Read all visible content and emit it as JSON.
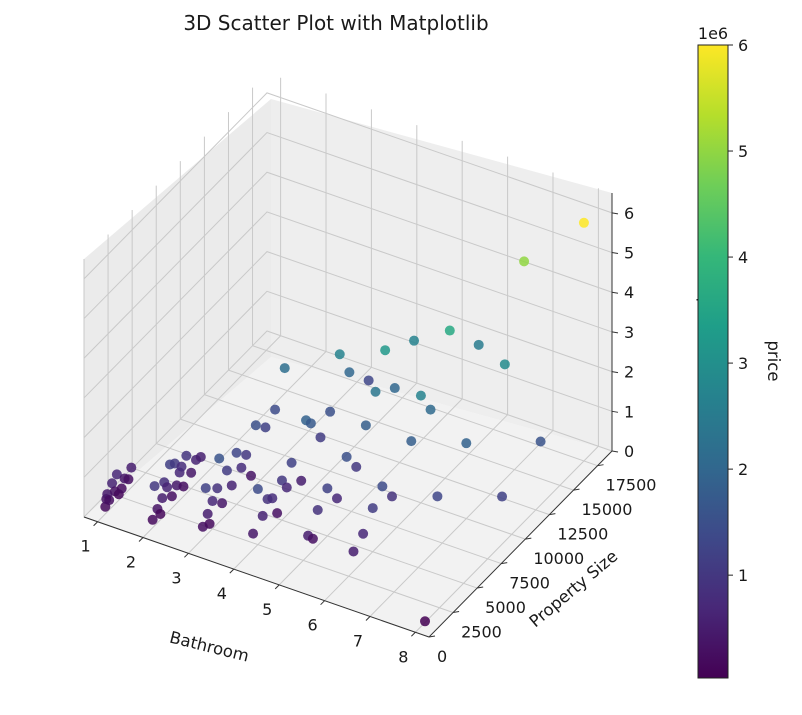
{
  "chart_data": {
    "type": "scatter",
    "title": "3D Scatter Plot with Matplotlib",
    "xlabel": "Bathroom",
    "ylabel": "Property Size",
    "zlabel": "price",
    "x_ticks": [
      "1",
      "2",
      "3",
      "4",
      "5",
      "6",
      "7",
      "8"
    ],
    "y_ticks": [
      "0",
      "2500",
      "5000",
      "7500",
      "10000",
      "12500",
      "15000",
      "17500"
    ],
    "z_ticks": [
      "0",
      "1",
      "2",
      "3",
      "4",
      "5",
      "6"
    ],
    "xlim": [
      0.7,
      8.3
    ],
    "ylim": [
      0,
      19000
    ],
    "zlim": [
      0,
      6500000
    ],
    "grid": true,
    "colormap": "viridis",
    "colorbar": {
      "label": "price",
      "multiplier": "1e6",
      "ticks": [
        "1",
        "2",
        "3",
        "4",
        "5",
        "6"
      ],
      "range": [
        30000,
        6000000
      ],
      "colors": [
        "#440154",
        "#482878",
        "#3e4989",
        "#31688e",
        "#26828e",
        "#1f9e89",
        "#35b779",
        "#6ece58",
        "#b5de2b",
        "#fde725"
      ]
    },
    "points": [
      {
        "x": 1,
        "y": 800,
        "z": 180000
      },
      {
        "x": 1,
        "y": 1200,
        "z": 250000
      },
      {
        "x": 1,
        "y": 1800,
        "z": 320000
      },
      {
        "x": 1,
        "y": 2200,
        "z": 150000
      },
      {
        "x": 1,
        "y": 2800,
        "z": 400000
      },
      {
        "x": 1,
        "y": 1500,
        "z": 600000
      },
      {
        "x": 1,
        "y": 900,
        "z": 350000
      },
      {
        "x": 1,
        "y": 2500,
        "z": 220000
      },
      {
        "x": 1,
        "y": 3200,
        "z": 280000
      },
      {
        "x": 1,
        "y": 1000,
        "z": 450000
      },
      {
        "x": 1,
        "y": 2000,
        "z": 700000
      },
      {
        "x": 1,
        "y": 3500,
        "z": 500000
      },
      {
        "x": 2,
        "y": 1000,
        "z": 200000
      },
      {
        "x": 2,
        "y": 1500,
        "z": 350000
      },
      {
        "x": 2,
        "y": 2000,
        "z": 500000
      },
      {
        "x": 2,
        "y": 2500,
        "z": 650000
      },
      {
        "x": 2,
        "y": 3000,
        "z": 300000
      },
      {
        "x": 2,
        "y": 3500,
        "z": 450000
      },
      {
        "x": 2,
        "y": 4000,
        "z": 800000
      },
      {
        "x": 2,
        "y": 4500,
        "z": 950000
      },
      {
        "x": 2,
        "y": 1200,
        "z": 1000000
      },
      {
        "x": 2,
        "y": 2800,
        "z": 1150000
      },
      {
        "x": 2,
        "y": 3800,
        "z": 700000
      },
      {
        "x": 2,
        "y": 5000,
        "z": 400000
      },
      {
        "x": 2,
        "y": 5500,
        "z": 600000
      },
      {
        "x": 2,
        "y": 1800,
        "z": 150000
      },
      {
        "x": 2,
        "y": 2200,
        "z": 850000
      },
      {
        "x": 2,
        "y": 3300,
        "z": 1050000
      },
      {
        "x": 2,
        "y": 4200,
        "z": 250000
      },
      {
        "x": 2,
        "y": 6000,
        "z": 550000
      },
      {
        "x": 3,
        "y": 1500,
        "z": 300000
      },
      {
        "x": 3,
        "y": 2000,
        "z": 500000
      },
      {
        "x": 3,
        "y": 2500,
        "z": 700000
      },
      {
        "x": 3,
        "y": 3000,
        "z": 900000
      },
      {
        "x": 3,
        "y": 3500,
        "z": 400000
      },
      {
        "x": 3,
        "y": 4000,
        "z": 1100000
      },
      {
        "x": 3,
        "y": 4500,
        "z": 600000
      },
      {
        "x": 3,
        "y": 5000,
        "z": 1300000
      },
      {
        "x": 3,
        "y": 5500,
        "z": 800000
      },
      {
        "x": 3,
        "y": 6000,
        "z": 1000000
      },
      {
        "x": 3,
        "y": 7000,
        "z": 1500000
      },
      {
        "x": 3,
        "y": 8000,
        "z": 1200000
      },
      {
        "x": 3,
        "y": 2200,
        "z": 200000
      },
      {
        "x": 3,
        "y": 3200,
        "z": 1600000
      },
      {
        "x": 3,
        "y": 6500,
        "z": 350000
      },
      {
        "x": 3,
        "y": 9000,
        "z": 1400000
      },
      {
        "x": 3,
        "y": 10000,
        "z": 2200000
      },
      {
        "x": 3,
        "y": 1800,
        "z": 1200000
      },
      {
        "x": 4,
        "y": 2000,
        "z": 400000
      },
      {
        "x": 4,
        "y": 3000,
        "z": 600000
      },
      {
        "x": 4,
        "y": 4000,
        "z": 800000
      },
      {
        "x": 4,
        "y": 5000,
        "z": 1000000
      },
      {
        "x": 4,
        "y": 6000,
        "z": 1200000
      },
      {
        "x": 4,
        "y": 7000,
        "z": 500000
      },
      {
        "x": 4,
        "y": 2500,
        "z": 1400000
      },
      {
        "x": 4,
        "y": 3500,
        "z": 900000
      },
      {
        "x": 4,
        "y": 4500,
        "z": 300000
      },
      {
        "x": 4,
        "y": 8000,
        "z": 1700000
      },
      {
        "x": 4,
        "y": 9000,
        "z": 1100000
      },
      {
        "x": 4,
        "y": 10000,
        "z": 1500000
      },
      {
        "x": 4,
        "y": 12000,
        "z": 2000000
      },
      {
        "x": 4,
        "y": 11000,
        "z": 2700000
      },
      {
        "x": 4,
        "y": 7500,
        "z": 1900000
      },
      {
        "x": 4,
        "y": 5500,
        "z": 700000
      },
      {
        "x": 4,
        "y": 14000,
        "z": 1300000
      },
      {
        "x": 5,
        "y": 3000,
        "z": 500000
      },
      {
        "x": 5,
        "y": 4000,
        "z": 900000
      },
      {
        "x": 5,
        "y": 5000,
        "z": 1200000
      },
      {
        "x": 5,
        "y": 6000,
        "z": 700000
      },
      {
        "x": 5,
        "y": 7000,
        "z": 1500000
      },
      {
        "x": 5,
        "y": 8000,
        "z": 1000000
      },
      {
        "x": 5,
        "y": 9000,
        "z": 1800000
      },
      {
        "x": 5,
        "y": 10000,
        "z": 2400000
      },
      {
        "x": 5,
        "y": 12000,
        "z": 2000000
      },
      {
        "x": 5,
        "y": 3500,
        "z": 300000
      },
      {
        "x": 5,
        "y": 14000,
        "z": 2700000
      },
      {
        "x": 5,
        "y": 11000,
        "z": 3200000
      },
      {
        "x": 6,
        "y": 4000,
        "z": 700000
      },
      {
        "x": 6,
        "y": 5000,
        "z": 1100000
      },
      {
        "x": 6,
        "y": 6000,
        "z": 1400000
      },
      {
        "x": 6,
        "y": 7000,
        "z": 900000
      },
      {
        "x": 6,
        "y": 9000,
        "z": 1800000
      },
      {
        "x": 6,
        "y": 11000,
        "z": 2100000
      },
      {
        "x": 6,
        "y": 13000,
        "z": 3600000
      },
      {
        "x": 6,
        "y": 16000,
        "z": 2500000
      },
      {
        "x": 6,
        "y": 3000,
        "z": 500000
      },
      {
        "x": 6,
        "y": 10000,
        "z": 2700000
      },
      {
        "x": 7,
        "y": 7000,
        "z": 1300000
      },
      {
        "x": 7,
        "y": 10000,
        "z": 1900000
      },
      {
        "x": 7,
        "y": 14000,
        "z": 2900000
      },
      {
        "x": 7,
        "y": 16000,
        "z": 5000000
      },
      {
        "x": 8,
        "y": 1000,
        "z": 30000
      },
      {
        "x": 8,
        "y": 9000,
        "z": 1200000
      },
      {
        "x": 8,
        "y": 13000,
        "z": 1600000
      },
      {
        "x": 8,
        "y": 17500,
        "z": 6000000
      }
    ]
  }
}
